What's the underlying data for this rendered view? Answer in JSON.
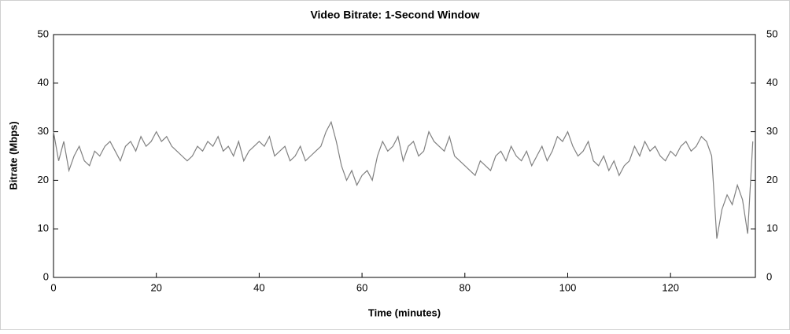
{
  "chart_data": {
    "type": "line",
    "title": "Video Bitrate: 1-Second Window",
    "x_label": "Time (minutes)",
    "y_label": "Bitrate (Mbps)",
    "xlim": [
      0,
      136.5
    ],
    "xticks": [
      0,
      20,
      40,
      60,
      80,
      100,
      120
    ],
    "ylim": [
      0,
      50
    ],
    "yticks": [
      0,
      10,
      20,
      30,
      40,
      50
    ],
    "x": [
      0,
      1,
      2,
      3,
      4,
      5,
      6,
      7,
      8,
      9,
      10,
      11,
      12,
      13,
      14,
      15,
      16,
      17,
      18,
      19,
      20,
      21,
      22,
      23,
      24,
      25,
      26,
      27,
      28,
      29,
      30,
      31,
      32,
      33,
      34,
      35,
      36,
      37,
      38,
      39,
      40,
      41,
      42,
      43,
      44,
      45,
      46,
      47,
      48,
      49,
      50,
      51,
      52,
      53,
      54,
      55,
      56,
      57,
      58,
      59,
      60,
      61,
      62,
      63,
      64,
      65,
      66,
      67,
      68,
      69,
      70,
      71,
      72,
      73,
      74,
      75,
      76,
      77,
      78,
      79,
      80,
      81,
      82,
      83,
      84,
      85,
      86,
      87,
      88,
      89,
      90,
      91,
      92,
      93,
      94,
      95,
      96,
      97,
      98,
      99,
      100,
      101,
      102,
      103,
      104,
      105,
      106,
      107,
      108,
      109,
      110,
      111,
      112,
      113,
      114,
      115,
      116,
      117,
      118,
      119,
      120,
      121,
      122,
      123,
      124,
      125,
      126,
      127,
      128,
      129,
      130,
      131,
      132,
      133,
      134,
      135,
      136
    ],
    "series": [
      {
        "name": "Video Bitrate",
        "color": "#808080",
        "values": [
          30,
          24,
          28,
          22,
          25,
          27,
          24,
          23,
          26,
          25,
          27,
          28,
          26,
          24,
          27,
          28,
          26,
          29,
          27,
          28,
          30,
          28,
          29,
          27,
          26,
          25,
          24,
          25,
          27,
          26,
          28,
          27,
          29,
          26,
          27,
          25,
          28,
          24,
          26,
          27,
          28,
          27,
          29,
          25,
          26,
          27,
          24,
          25,
          27,
          24,
          25,
          26,
          27,
          30,
          32,
          28,
          23,
          20,
          22,
          19,
          21,
          22,
          20,
          25,
          28,
          26,
          27,
          29,
          24,
          27,
          28,
          25,
          26,
          30,
          28,
          27,
          26,
          29,
          25,
          24,
          23,
          22,
          21,
          24,
          23,
          22,
          25,
          26,
          24,
          27,
          25,
          24,
          26,
          23,
          25,
          27,
          24,
          26,
          29,
          28,
          30,
          27,
          25,
          26,
          28,
          24,
          23,
          25,
          22,
          24,
          21,
          23,
          24,
          27,
          25,
          28,
          26,
          27,
          25,
          24,
          26,
          25,
          27,
          28,
          26,
          27,
          29,
          28,
          25,
          8,
          14,
          17,
          15,
          19,
          16,
          9,
          28
        ]
      }
    ]
  }
}
